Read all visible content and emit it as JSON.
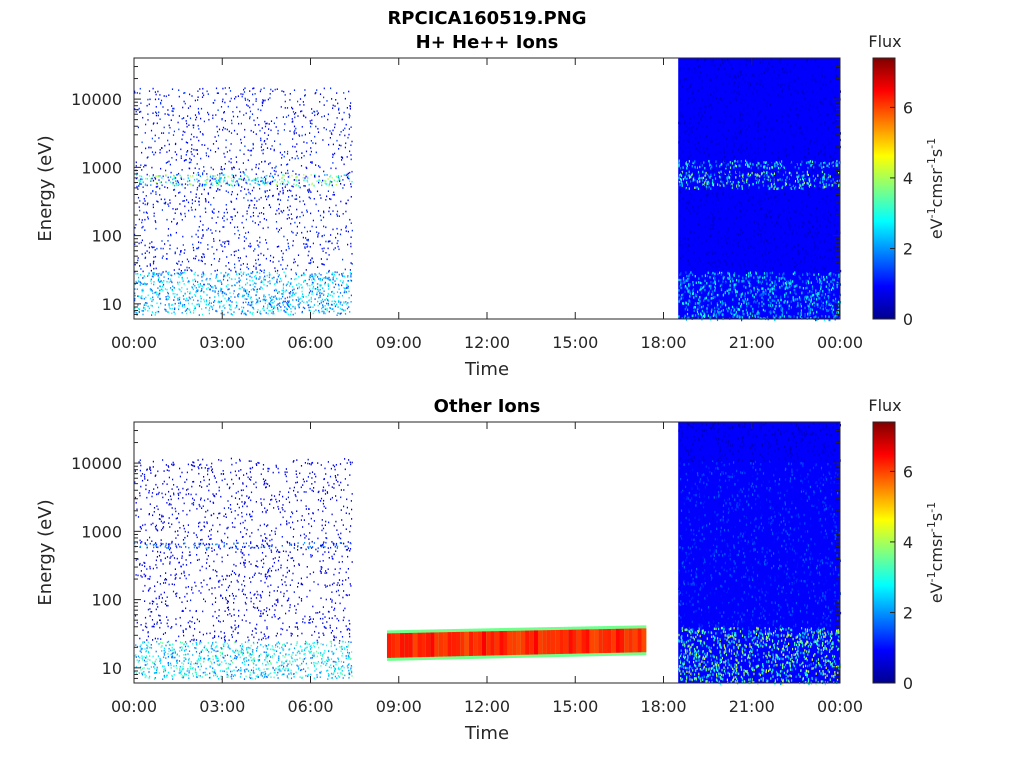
{
  "figure": {
    "filename_title": "RPCICA160519.PNG"
  },
  "colormap": [
    "#00008f",
    "#0000ff",
    "#0080ff",
    "#00ffff",
    "#80ff80",
    "#ffff00",
    "#ff8000",
    "#ff0000",
    "#800000"
  ],
  "chart_data": [
    {
      "type": "heatmap",
      "title": "H+ He++ Ions",
      "xlabel": "Time",
      "ylabel": "Energy (eV)",
      "yscale": "log",
      "ylim": [
        6,
        40000
      ],
      "x_ticks": [
        "00:00",
        "03:00",
        "06:00",
        "09:00",
        "12:00",
        "15:00",
        "18:00",
        "21:00",
        "00:00"
      ],
      "y_ticks": [
        10,
        100,
        1000,
        10000
      ],
      "y_tick_labels": [
        "10",
        "100",
        "1000",
        "10000"
      ],
      "colorbar": {
        "label": "Flux",
        "unit_label": "eV-1cm-2sr-1s-1",
        "range": [
          0,
          7.4
        ],
        "ticks": [
          0,
          2,
          4,
          6
        ],
        "tick_labels": [
          "0",
          "2",
          "4",
          "6"
        ]
      },
      "segments": [
        {
          "t_start_h": 0.0,
          "t_end_h": 7.4,
          "level": "low",
          "bands": [
            {
              "e_low": 7,
              "e_high": 30,
              "flux": 2.2
            },
            {
              "e_low": 550,
              "e_high": 800,
              "flux": 3.0
            },
            {
              "e_low": 30,
              "e_high": 15000,
              "flux": 1.0
            }
          ]
        },
        {
          "t_start_h": 18.5,
          "t_end_h": 24.0,
          "level": "high",
          "bands": [
            {
              "e_low": 6,
              "e_high": 30,
              "flux": 2.2
            },
            {
              "e_low": 500,
              "e_high": 900,
              "flux": 3.0
            },
            {
              "e_low": 1000,
              "e_high": 1300,
              "flux": 2.5
            },
            {
              "e_low": 30,
              "e_high": 40000,
              "flux": 0.6
            }
          ]
        }
      ]
    },
    {
      "type": "heatmap",
      "title": "Other Ions",
      "xlabel": "Time",
      "ylabel": "Energy (eV)",
      "yscale": "log",
      "ylim": [
        6,
        40000
      ],
      "x_ticks": [
        "00:00",
        "03:00",
        "06:00",
        "09:00",
        "12:00",
        "15:00",
        "18:00",
        "21:00",
        "00:00"
      ],
      "y_ticks": [
        10,
        100,
        1000,
        10000
      ],
      "y_tick_labels": [
        "10",
        "100",
        "1000",
        "10000"
      ],
      "colorbar": {
        "label": "Flux",
        "unit_label": "eV-1cm-2sr-1s-1",
        "range": [
          0,
          7.4
        ],
        "ticks": [
          0,
          2,
          4,
          6
        ],
        "tick_labels": [
          "0",
          "2",
          "4",
          "6"
        ]
      },
      "segments": [
        {
          "t_start_h": 0.0,
          "t_end_h": 7.4,
          "level": "low",
          "bands": [
            {
              "e_low": 7,
              "e_high": 25,
              "flux": 2.6
            },
            {
              "e_low": 580,
              "e_high": 700,
              "flux": 1.5
            },
            {
              "e_low": 25,
              "e_high": 12000,
              "flux": 0.8
            }
          ]
        },
        {
          "t_start_h": 8.6,
          "t_end_h": 17.4,
          "level": "beam",
          "bands": [
            {
              "e_low": 14,
              "e_high": 32,
              "flux": 6.3
            }
          ]
        },
        {
          "t_start_h": 18.5,
          "t_end_h": 24.0,
          "level": "high",
          "bands": [
            {
              "e_low": 6,
              "e_high": 40,
              "flux": 3.2
            },
            {
              "e_low": 40,
              "e_high": 11000,
              "flux": 1.2
            },
            {
              "e_low": 11000,
              "e_high": 40000,
              "flux": 0.5
            }
          ]
        }
      ]
    }
  ]
}
